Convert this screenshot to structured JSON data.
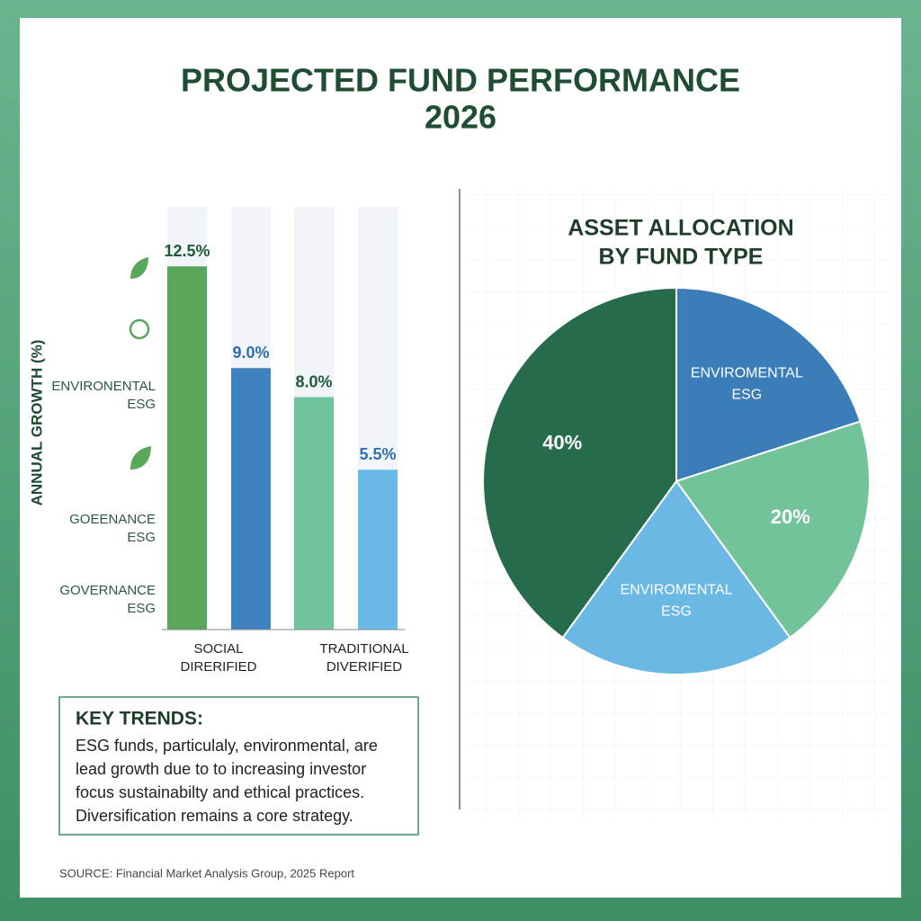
{
  "title": [
    "PROJECTED FUND PERFORMANCE",
    "2026"
  ],
  "charts": [
    {
      "type": "bar",
      "y_label": "ANNUAL GROWTH (%)",
      "side_labels": [
        [
          "ENVIRONENTAL",
          "ESG"
        ],
        [
          "GOEENANCE",
          "ESG"
        ],
        [
          "GOVERNANCE",
          "ESG"
        ]
      ],
      "group_labels": [
        [
          "SOCIAL",
          "DIRERIFIED"
        ],
        [
          "TRADITIONAL",
          "DIVERIFIED"
        ]
      ],
      "values": [
        12.5,
        9.0,
        8.0,
        5.5
      ],
      "value_labels": [
        "12.5%",
        "9.0%",
        "8.0%",
        "5.5%"
      ],
      "colors": [
        "#5aa65a",
        "#3e82c0",
        "#6fc39d",
        "#6ab8e6"
      ],
      "label_colors": [
        "#1e5a36",
        "#2f6fae",
        "#1e5a36",
        "#2f6fae"
      ],
      "ylim": [
        0,
        13
      ]
    },
    {
      "type": "pie",
      "title": [
        "ASSET ALLOCATION",
        "BY FUND TYPE"
      ],
      "categories": [
        [
          "ENVIROMENTAL",
          "ESG"
        ],
        null,
        [
          "ENVIROMENTAL",
          "ESG"
        ],
        null
      ],
      "values": [
        20,
        20,
        20,
        40
      ],
      "value_labels": [
        null,
        "20%",
        null,
        "40%"
      ],
      "colors": [
        "#3a7db8",
        "#72c29a",
        "#6ab8e3",
        "#256b4c"
      ]
    }
  ],
  "key_trends": {
    "title": "KEY TRENDS:",
    "lines": [
      "ESG funds, particulaly, environmental, are",
      "lead growth due to to increasing investor",
      "focus sustainabilty and ethical practices.",
      "Diversification remains a core strategy."
    ]
  },
  "source": "SOURCE: Financial Market Analysis Group, 2025 Report"
}
